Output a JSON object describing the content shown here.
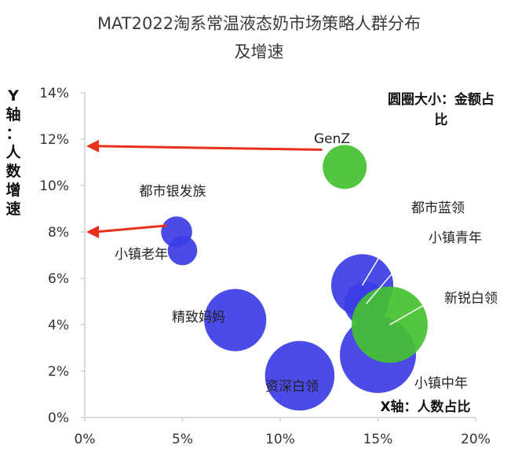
{
  "chart_data": {
    "type": "scatter",
    "title_line1": "MAT2022淘系常温液态奶市场策略人群分布",
    "title_line2": "及增速",
    "xlabel": "X轴：人数占比",
    "ylabel": "Y轴：人数增速",
    "size_note": "圆圈大小：金额占比",
    "xlim": [
      0,
      20
    ],
    "ylim": [
      0,
      14
    ],
    "x_ticks": [
      "0%",
      "5%",
      "10%",
      "15%",
      "20%"
    ],
    "y_ticks": [
      "0%",
      "2%",
      "4%",
      "6%",
      "8%",
      "10%",
      "12%",
      "14%"
    ],
    "colors": {
      "blue": "#3c3ce6",
      "green": "#44c130",
      "arrow": "#e8321e",
      "axis": "#cfcfcf"
    },
    "points": [
      {
        "name": "GenZ",
        "x": 13.3,
        "y": 10.8,
        "size": 1.0,
        "color": "green"
      },
      {
        "name": "都市银发族",
        "x": 4.7,
        "y": 8.0,
        "size": 0.5,
        "color": "blue"
      },
      {
        "name": "小镇老年",
        "x": 5.0,
        "y": 7.2,
        "size": 0.45,
        "color": "blue"
      },
      {
        "name": "精致妈妈",
        "x": 7.7,
        "y": 4.2,
        "size": 2.0,
        "color": "blue"
      },
      {
        "name": "资深白领",
        "x": 11.0,
        "y": 1.8,
        "size": 2.5,
        "color": "blue"
      },
      {
        "name": "都市蓝领",
        "x": 14.2,
        "y": 5.7,
        "size": 2.0,
        "color": "blue"
      },
      {
        "name": "小镇青年",
        "x": 14.4,
        "y": 4.9,
        "size": 1.0,
        "color": "blue"
      },
      {
        "name": "小镇中年",
        "x": 15.0,
        "y": 2.7,
        "size": 3.0,
        "color": "blue"
      },
      {
        "name": "新锐白领",
        "x": 15.6,
        "y": 4.0,
        "size": 3.0,
        "color": "green"
      }
    ]
  }
}
